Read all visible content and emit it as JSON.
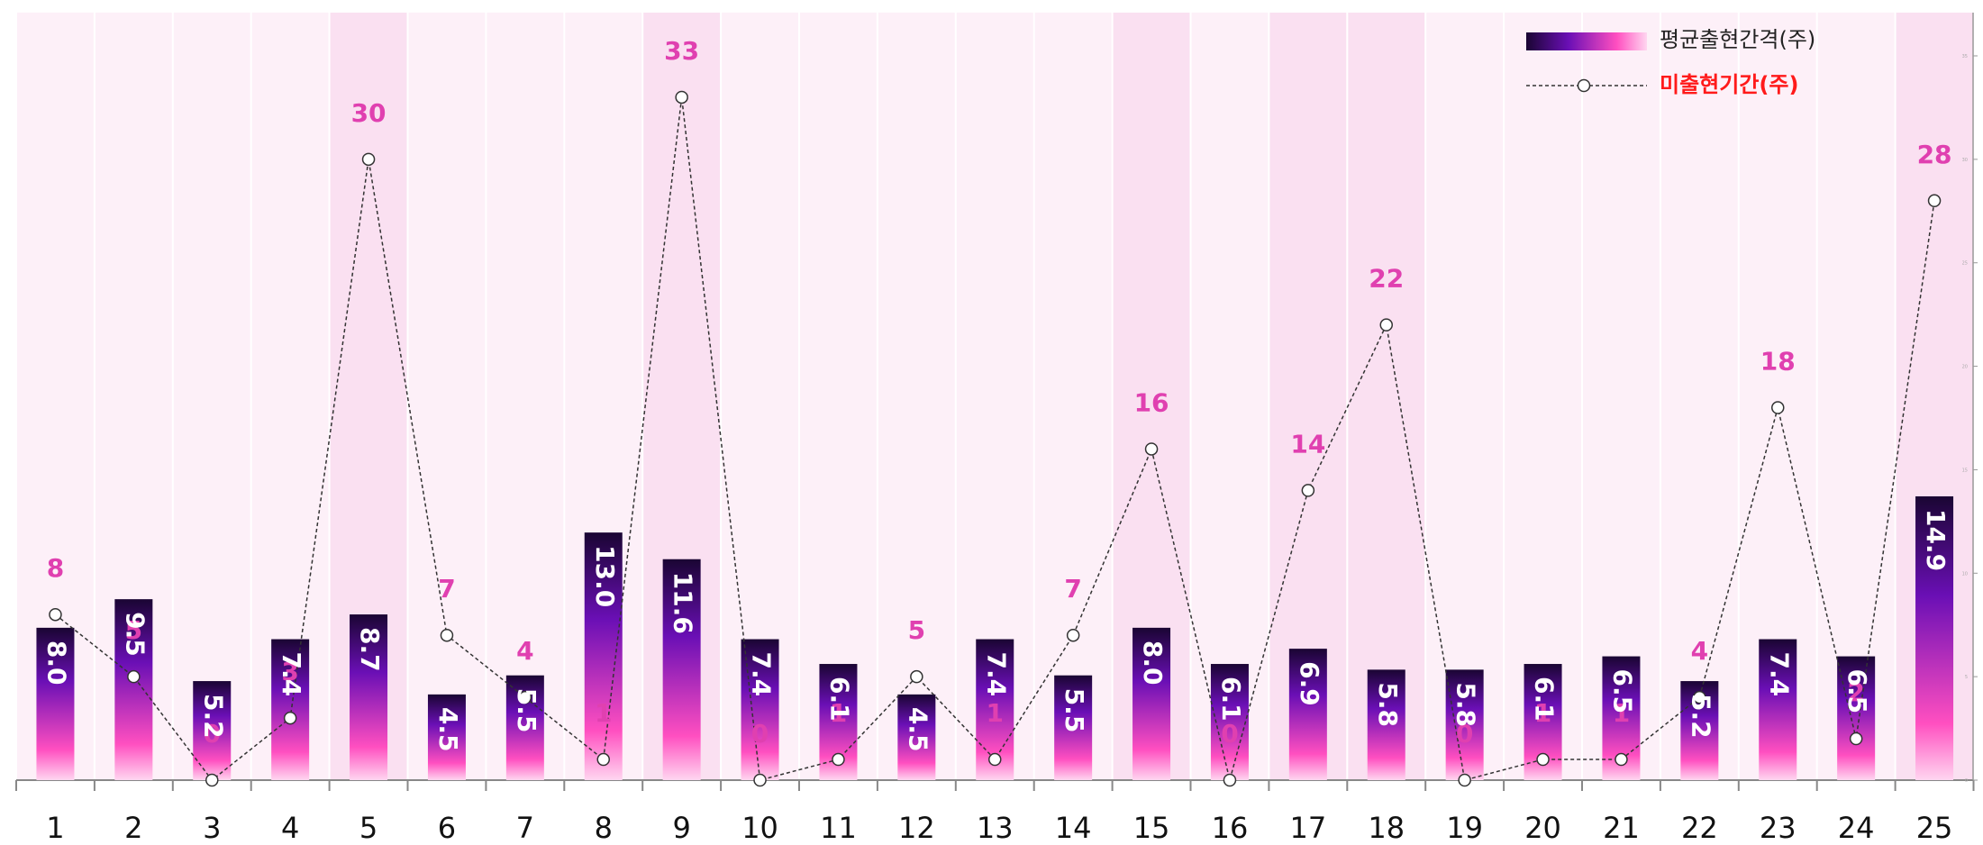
{
  "chart_data": {
    "type": "bar",
    "categories": [
      "1",
      "2",
      "3",
      "4",
      "5",
      "6",
      "7",
      "8",
      "9",
      "10",
      "11",
      "12",
      "13",
      "14",
      "15",
      "16",
      "17",
      "18",
      "19",
      "20",
      "21",
      "22",
      "23",
      "24",
      "25"
    ],
    "series": [
      {
        "name": "평균출현간격(주)",
        "type": "bar",
        "values": [
          8.0,
          9.5,
          5.2,
          7.4,
          8.7,
          4.5,
          5.5,
          13.0,
          11.6,
          7.4,
          6.1,
          4.5,
          7.4,
          5.5,
          8.0,
          6.1,
          6.9,
          5.8,
          5.8,
          6.1,
          6.5,
          5.2,
          7.4,
          6.5,
          14.9
        ]
      },
      {
        "name": "미출현기간(주)",
        "type": "line",
        "values": [
          8,
          5,
          0,
          3,
          30,
          7,
          4,
          1,
          33,
          0,
          1,
          5,
          1,
          7,
          16,
          0,
          14,
          22,
          0,
          1,
          1,
          4,
          18,
          2,
          28
        ]
      }
    ],
    "highlighted_categories": [
      "5",
      "9",
      "15",
      "17",
      "18",
      "25"
    ],
    "right_axis_ticks": [
      "0",
      "5",
      "10",
      "15",
      "20",
      "25",
      "30",
      "35"
    ],
    "ylim_line": [
      0,
      35
    ],
    "ylim_bar": [
      0,
      35
    ],
    "legend_position": "top-right",
    "colors": {
      "bar_top": "#1a0533",
      "bar_mid": "#6a0fb5",
      "bar_bottom": "#ff4fc0",
      "line_value": "#e040b0",
      "legend_line_label": "#ff1a1a",
      "band_light": "#fdf0f8",
      "band_dark": "#fae0f1"
    }
  }
}
